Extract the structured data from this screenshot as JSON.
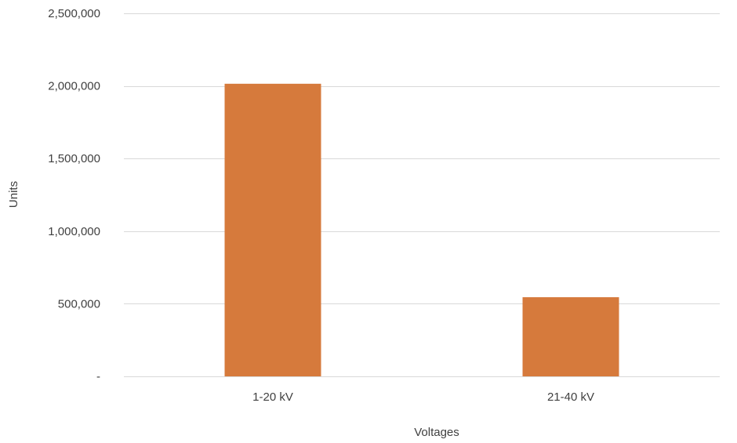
{
  "chart_data": {
    "type": "bar",
    "title": "",
    "xlabel": "Voltages",
    "ylabel": "Units",
    "categories": [
      "1-20 kV",
      "21-40 kV"
    ],
    "series": [
      {
        "values": [
          2015000,
          545000
        ]
      }
    ],
    "ylim": [
      0,
      2500000
    ],
    "yticks": [
      0,
      500000,
      1000000,
      1500000,
      2000000,
      2500000
    ],
    "ytick_labels": [
      "-",
      "500,000",
      "1,000,000",
      "1,500,000",
      "2,000,000",
      "2,500,000"
    ],
    "grid": true,
    "legend": "none",
    "colors": {
      "bar": "#d67a3c",
      "grid": "#d9d9d9",
      "text": "#404040"
    }
  }
}
